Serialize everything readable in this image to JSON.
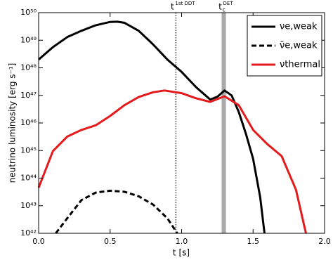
{
  "chart_data": {
    "type": "line",
    "xlabel": "t [s]",
    "ylabel": "neutrino luminosity [erg s⁻¹]",
    "log_y": true,
    "legend": "upper right",
    "xlim": [
      0,
      2
    ],
    "xticks": [
      {
        "value": 0,
        "label": "0.0"
      },
      0.5,
      {
        "value": 1,
        "label": "1.0"
      },
      1.5,
      {
        "value": 2,
        "label": "2.0"
      }
    ],
    "ylim": [
      1e+42,
      1e+50
    ],
    "yticks": [
      {
        "value": 1e+42,
        "label": "10⁴²"
      },
      {
        "value": 1e+43,
        "label": "10⁴³"
      },
      {
        "value": 1e+44,
        "label": "10⁴⁴"
      },
      {
        "value": 1e+45,
        "label": "10⁴⁵"
      },
      {
        "value": 1e+46,
        "label": "10⁴⁶"
      },
      {
        "value": 1e+47,
        "label": "10⁴⁷"
      },
      {
        "value": 1e+48,
        "label": "10⁴⁸"
      },
      {
        "value": 1e+49,
        "label": "10⁴⁹"
      },
      {
        "value": 1e+50,
        "label": "10⁵⁰"
      }
    ],
    "annotations": [
      {
        "x": 0.96,
        "label": "t",
        "superscript": "1st DDT",
        "style": "dotted"
      },
      {
        "x": [
          1.28,
          1.31
        ],
        "label": "t",
        "subscript": "c",
        "superscript": "DET",
        "color": "#aaaaaa"
      }
    ],
    "series": [
      {
        "name": "νe,weak",
        "color": "#000000",
        "style": "solid",
        "x": [
          0,
          0.1,
          0.2,
          0.3,
          0.4,
          0.5,
          0.55,
          0.6,
          0.7,
          0.8,
          0.9,
          1.0,
          1.1,
          1.2,
          1.25,
          1.3,
          1.35,
          1.4,
          1.45,
          1.5,
          1.55,
          1.58
        ],
        "values": [
          2e+48,
          5.6e+48,
          1.3e+49,
          2.2e+49,
          3.5e+49,
          4.6e+49,
          4.7e+49,
          4.3e+49,
          2.2e+49,
          7.1e+48,
          2e+48,
          7.1e+47,
          2e+47,
          7.1e+46,
          8.9e+46,
          1.5e+47,
          1e+47,
          2.5e+46,
          4e+45,
          5e+44,
          2e+43,
          1e+42
        ]
      },
      {
        "name": "ν̄e,weak",
        "color": "#000000",
        "style": "dashed",
        "x": [
          0.12,
          0.2,
          0.3,
          0.4,
          0.5,
          0.6,
          0.7,
          0.8,
          0.9,
          0.97
        ],
        "values": [
          1e+42,
          3.5e+42,
          1.6e+43,
          3e+43,
          3.5e+43,
          3.2e+43,
          2.2e+43,
          1.1e+43,
          3.5e+42,
          1e+42
        ]
      },
      {
        "name": "νthermal",
        "color": "#e41a1c",
        "style": "solid",
        "x": [
          0,
          0.1,
          0.2,
          0.3,
          0.4,
          0.5,
          0.6,
          0.7,
          0.8,
          0.88,
          1.0,
          1.1,
          1.2,
          1.3,
          1.4,
          1.5,
          1.6,
          1.7,
          1.8,
          1.87
        ],
        "values": [
          4.5e+43,
          9.5e+44,
          3.2e+45,
          5.6e+45,
          8.3e+45,
          1.8e+46,
          4.4e+46,
          8.7e+46,
          1.3e+47,
          1.5e+47,
          1.2e+47,
          7.9e+46,
          5.8e+46,
          9.3e+46,
          4.4e+46,
          5.6e+45,
          1.7e+45,
          6.3e+44,
          3.8e+43,
          1e+42
        ]
      }
    ]
  }
}
